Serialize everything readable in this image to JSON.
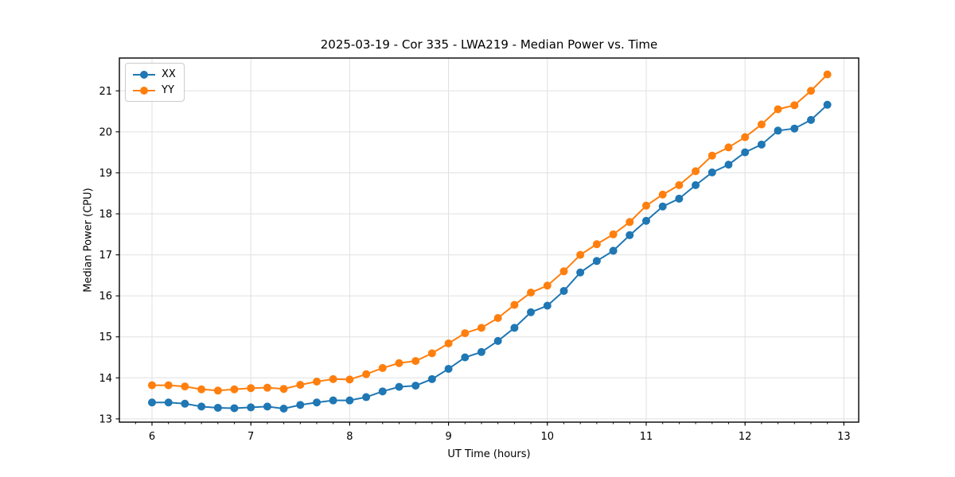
{
  "figure": {
    "background": "#ffffff",
    "text_color": "#000000",
    "grid_color": "#e0e0e0",
    "spine_color": "#000000"
  },
  "chart_data": {
    "type": "line",
    "title": "2025-03-19 - Cor 335 - LWA219 - Median Power vs. Time",
    "xlabel": "UT Time (hours)",
    "ylabel": "Median Power (CPU)",
    "xlim": [
      5.67,
      13.15
    ],
    "ylim": [
      12.92,
      21.8
    ],
    "x_ticks": [
      6,
      7,
      8,
      9,
      10,
      11,
      12,
      13
    ],
    "y_ticks": [
      13,
      14,
      15,
      16,
      17,
      18,
      19,
      20,
      21
    ],
    "x_minor_tick_step": 0.16667,
    "grid": "major-only",
    "legend_position": "upper-left",
    "marker": "circle",
    "x": [
      6.0,
      6.167,
      6.333,
      6.5,
      6.667,
      6.833,
      7.0,
      7.167,
      7.333,
      7.5,
      7.667,
      7.833,
      8.0,
      8.167,
      8.333,
      8.5,
      8.667,
      8.833,
      9.0,
      9.167,
      9.333,
      9.5,
      9.667,
      9.833,
      10.0,
      10.167,
      10.333,
      10.5,
      10.667,
      10.833,
      11.0,
      11.167,
      11.333,
      11.5,
      11.667,
      11.833,
      12.0,
      12.167,
      12.333,
      12.5,
      12.667,
      12.833
    ],
    "series": [
      {
        "name": "XX",
        "color": "#1f77b4",
        "values": [
          13.4,
          13.4,
          13.37,
          13.3,
          13.27,
          13.26,
          13.28,
          13.3,
          13.25,
          13.34,
          13.4,
          13.45,
          13.45,
          13.53,
          13.67,
          13.78,
          13.81,
          13.97,
          14.22,
          14.5,
          14.63,
          14.9,
          15.22,
          15.6,
          15.76,
          16.12,
          16.57,
          16.85,
          17.1,
          17.48,
          17.83,
          18.18,
          18.37,
          18.7,
          19.01,
          19.2,
          19.5,
          19.69,
          20.03,
          20.08,
          20.29,
          20.66
        ]
      },
      {
        "name": "YY",
        "color": "#ff7f0e",
        "values": [
          13.82,
          13.82,
          13.79,
          13.72,
          13.69,
          13.72,
          13.75,
          13.76,
          13.73,
          13.83,
          13.91,
          13.97,
          13.96,
          14.09,
          14.24,
          14.36,
          14.41,
          14.6,
          14.84,
          15.09,
          15.22,
          15.46,
          15.78,
          16.08,
          16.25,
          16.6,
          17.0,
          17.26,
          17.5,
          17.8,
          18.2,
          18.47,
          18.7,
          19.04,
          19.42,
          19.62,
          19.87,
          20.18,
          20.55,
          20.65,
          21.0,
          21.4
        ]
      }
    ]
  }
}
